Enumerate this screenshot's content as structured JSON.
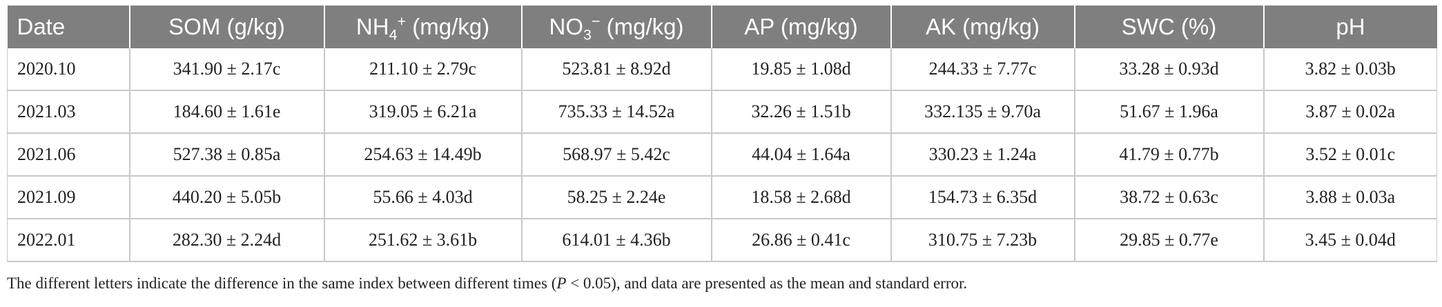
{
  "table": {
    "headers": [
      {
        "main": "Date",
        "sub": "",
        "sup": "",
        "unit": ""
      },
      {
        "main": "SOM (g/kg)",
        "sub": "",
        "sup": "",
        "unit": ""
      },
      {
        "main": "NH",
        "sub": "4",
        "sup": "+",
        "unit": " (mg/kg)"
      },
      {
        "main": "NO",
        "sub": "3",
        "sup": "−",
        "unit": " (mg/kg)"
      },
      {
        "main": "AP (mg/kg)",
        "sub": "",
        "sup": "",
        "unit": ""
      },
      {
        "main": "AK (mg/kg)",
        "sub": "",
        "sup": "",
        "unit": ""
      },
      {
        "main": "SWC (%)",
        "sub": "",
        "sup": "",
        "unit": ""
      },
      {
        "main": "pH",
        "sub": "",
        "sup": "",
        "unit": ""
      }
    ],
    "rows": [
      [
        "2020.10",
        "341.90 ± 2.17c",
        "211.10 ± 2.79c",
        "523.81 ± 8.92d",
        "19.85 ± 1.08d",
        "244.33 ± 7.77c",
        "33.28 ± 0.93d",
        "3.82 ± 0.03b"
      ],
      [
        "2021.03",
        "184.60 ± 1.61e",
        "319.05 ± 6.21a",
        "735.33 ± 14.52a",
        "32.26 ± 1.51b",
        "332.135 ± 9.70a",
        "51.67 ± 1.96a",
        "3.87 ± 0.02a"
      ],
      [
        "2021.06",
        "527.38 ± 0.85a",
        "254.63 ± 14.49b",
        "568.97 ± 5.42c",
        "44.04 ± 1.64a",
        "330.23 ± 1.24a",
        "41.79 ± 0.77b",
        "3.52 ± 0.01c"
      ],
      [
        "2021.09",
        "440.20 ± 5.05b",
        "55.66 ± 4.03d",
        "58.25 ± 2.24e",
        "18.58 ± 2.68d",
        "154.73 ± 6.35d",
        "38.72 ± 0.63c",
        "3.88 ± 0.03a"
      ],
      [
        "2022.01",
        "282.30 ± 2.24d",
        "251.62 ± 3.61b",
        "614.01 ± 4.36b",
        "26.86 ± 0.41c",
        "310.75 ± 7.23b",
        "29.85 ± 0.77e",
        "3.45 ± 0.04d"
      ]
    ]
  },
  "footnote": {
    "before": "The different letters indicate the difference in the same index between different times (",
    "italic": "P",
    "after": " < 0.05), and data are presented as the mean and standard error."
  }
}
